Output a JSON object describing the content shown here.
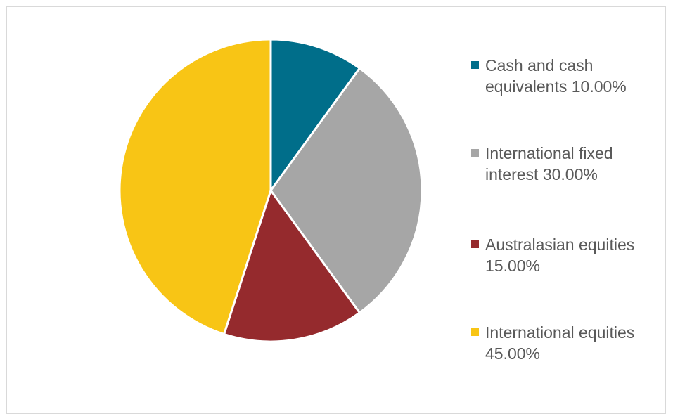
{
  "chart_data": {
    "type": "pie",
    "title": "",
    "legend_position": "right",
    "start_angle_deg": 0,
    "direction": "clockwise",
    "slices": [
      {
        "name": "Cash and cash equivalents",
        "value": 10.0,
        "label": "Cash and cash equivalents 10.00%",
        "color": "#006e8a"
      },
      {
        "name": "International fixed interest",
        "value": 30.0,
        "label": "International fixed interest 30.00%",
        "color": "#a6a6a6"
      },
      {
        "name": "Australasian equities",
        "value": 15.0,
        "label": "Australasian equities 15.00%",
        "color": "#952a2d"
      },
      {
        "name": "International equities",
        "value": 45.0,
        "label": "International equities 45.00%",
        "color": "#f8c515"
      }
    ]
  }
}
